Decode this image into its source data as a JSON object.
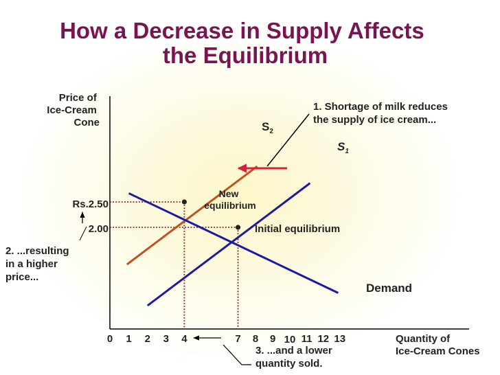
{
  "chart_data": {
    "type": "line",
    "title_lines": [
      "How a Decrease in Supply Affects",
      "the Equilibrium"
    ],
    "ylabel_lines": [
      "Price of",
      "Ice-Cream",
      "Cone"
    ],
    "xlabel_lines": [
      "Quantity of",
      "Ice-Cream Cones"
    ],
    "x_ticks": [
      "0",
      "1",
      "2",
      "3",
      "4",
      "7",
      "8",
      "9",
      "10",
      "11",
      "12",
      "13"
    ],
    "y_ticks": [
      "Rs.2.50",
      "2.00"
    ],
    "series": [
      {
        "name": "S",
        "sub": "2",
        "color": "#c0501e",
        "points": [
          [
            0.9,
            1.27
          ],
          [
            8.1,
            3.2
          ]
        ]
      },
      {
        "name": "S",
        "sub": "1",
        "color": "#1a1aa6",
        "points": [
          [
            2.0,
            0.46
          ],
          [
            11.2,
            2.87
          ]
        ]
      },
      {
        "name": "Demand",
        "sub": "",
        "color": "#1a1aa6",
        "points": [
          [
            1.0,
            2.67
          ],
          [
            12.9,
            0.71
          ]
        ]
      }
    ],
    "equilibria": [
      {
        "label_lines": [
          "New",
          "equilibrium"
        ],
        "x": 4,
        "y": 2.5
      },
      {
        "label_lines": [
          "Initial equilibrium"
        ],
        "x": 7,
        "y": 2.0
      }
    ],
    "annotations": {
      "shortage": [
        "1. Shortage of milk reduces",
        "the supply of ice cream..."
      ],
      "higher_price": [
        "2. ...resulting",
        "in a higher",
        "price..."
      ],
      "lower_quantity": [
        "3. ...and a lower",
        "quantity sold."
      ]
    },
    "shift_arrow_color": "#d8203c",
    "title_color": "#7a1450",
    "guide_color": "#8b1a1a"
  }
}
